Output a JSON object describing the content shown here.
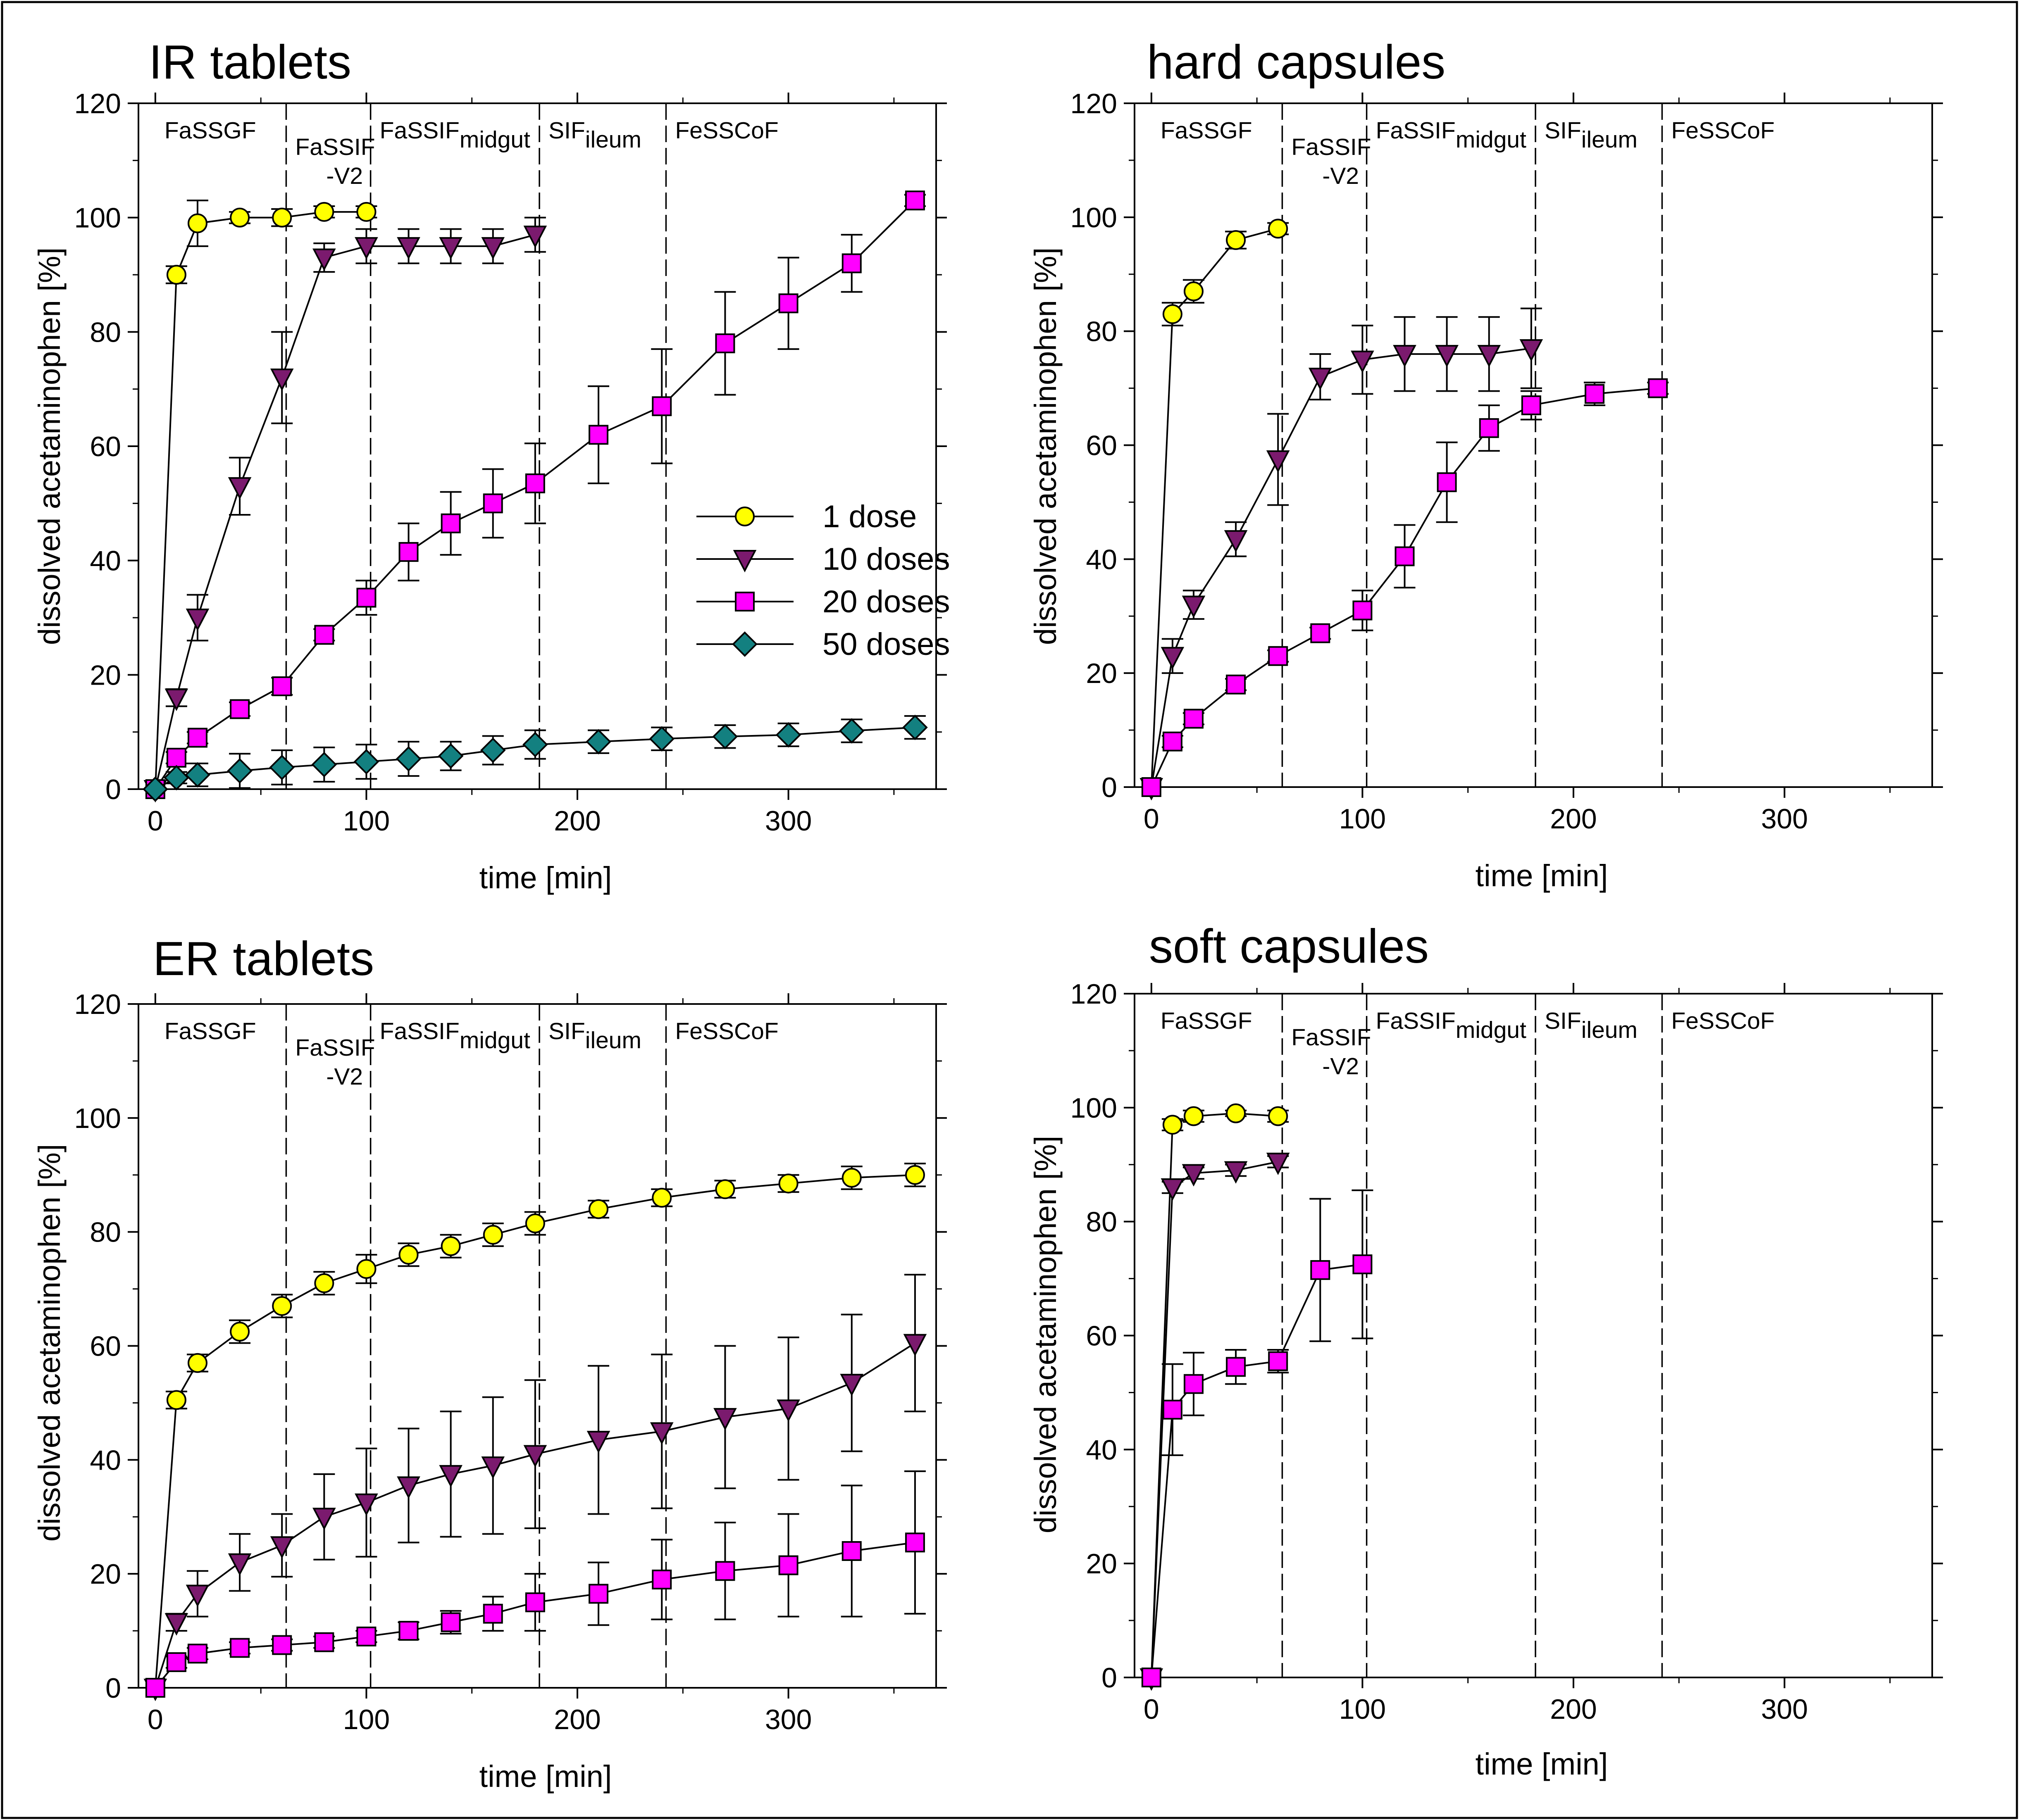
{
  "colors": {
    "1 dose": "#ffff00",
    "10 doses": "#7b1a6e",
    "20 doses": "#ff00ff",
    "50 doses": "#138080",
    "line": "#000000"
  },
  "legend": [
    {
      "label": "1 dose",
      "marker": "circle",
      "color": "#ffff00"
    },
    {
      "label": "10 doses",
      "marker": "triangle-down",
      "color": "#7b1a6e"
    },
    {
      "label": "20 doses",
      "marker": "square",
      "color": "#ff00ff"
    },
    {
      "label": "50 doses",
      "marker": "diamond",
      "color": "#138080"
    }
  ],
  "chart_data": [
    {
      "type": "line",
      "title": "IR tablets",
      "xlabel": "time [min]",
      "ylabel": "dissolved acetaminophen [%]",
      "xlim": [
        -8,
        370
      ],
      "ylim": [
        0,
        120
      ],
      "xticks": [
        0,
        100,
        200,
        300
      ],
      "yticks": [
        0,
        20,
        40,
        60,
        80,
        100,
        120
      ],
      "phase_boundaries": [
        62,
        102,
        182,
        242
      ],
      "phases": [
        {
          "label": "FaSSGF",
          "sub": ""
        },
        {
          "label": "FaSSIF",
          "sub": "",
          "line2": "-V2"
        },
        {
          "label": "FaSSIF",
          "sub": "midgut"
        },
        {
          "label": "SIF",
          "sub": "ileum"
        },
        {
          "label": "FeSSCoF",
          "sub": ""
        }
      ],
      "show_legend": true,
      "series": [
        {
          "name": "1 dose",
          "marker": "circle",
          "color": "#ffff00",
          "points": [
            [
              0,
              0,
              0
            ],
            [
              10,
              90,
              1.5
            ],
            [
              20,
              99,
              4
            ],
            [
              40,
              100,
              1
            ],
            [
              60,
              100,
              1.5
            ],
            [
              80,
              101,
              1
            ],
            [
              100,
              101,
              1
            ]
          ]
        },
        {
          "name": "10 doses",
          "marker": "triangle-down",
          "color": "#7b1a6e",
          "points": [
            [
              0,
              0,
              0
            ],
            [
              10,
              16,
              1.5
            ],
            [
              20,
              30,
              4
            ],
            [
              40,
              53,
              5
            ],
            [
              60,
              72,
              8
            ],
            [
              80,
              93,
              2.5
            ],
            [
              100,
              95,
              3
            ],
            [
              120,
              95,
              3
            ],
            [
              140,
              95,
              3
            ],
            [
              160,
              95,
              3
            ],
            [
              180,
              97,
              3
            ]
          ]
        },
        {
          "name": "20 doses",
          "marker": "square",
          "color": "#ff00ff",
          "points": [
            [
              0,
              0,
              0
            ],
            [
              10,
              5.5,
              1
            ],
            [
              20,
              9,
              1
            ],
            [
              40,
              14,
              1.2
            ],
            [
              60,
              18,
              1.5
            ],
            [
              80,
              27,
              1
            ],
            [
              100,
              33.5,
              3
            ],
            [
              120,
              41.5,
              5
            ],
            [
              140,
              46.5,
              5.5
            ],
            [
              160,
              50,
              6
            ],
            [
              180,
              53.5,
              7
            ],
            [
              210,
              62,
              8.5
            ],
            [
              240,
              67,
              10
            ],
            [
              270,
              78,
              9
            ],
            [
              300,
              85,
              8
            ],
            [
              330,
              92,
              5
            ],
            [
              360,
              103,
              1
            ]
          ]
        },
        {
          "name": "50 doses",
          "marker": "diamond",
          "color": "#138080",
          "points": [
            [
              0,
              0,
              0
            ],
            [
              10,
              2,
              1
            ],
            [
              20,
              2.5,
              2
            ],
            [
              40,
              3.2,
              3
            ],
            [
              60,
              3.8,
              3
            ],
            [
              80,
              4.3,
              3
            ],
            [
              100,
              4.8,
              3
            ],
            [
              120,
              5.3,
              3
            ],
            [
              140,
              5.8,
              2.5
            ],
            [
              160,
              6.8,
              2.5
            ],
            [
              180,
              7.8,
              2.5
            ],
            [
              210,
              8.3,
              2
            ],
            [
              240,
              8.8,
              2
            ],
            [
              270,
              9.2,
              2
            ],
            [
              300,
              9.5,
              2
            ],
            [
              330,
              10.2,
              2
            ],
            [
              360,
              10.8,
              2
            ]
          ]
        }
      ]
    },
    {
      "type": "line",
      "title": "hard capsules",
      "xlabel": "time [min]",
      "ylabel": "dissolved acetaminophen [%]",
      "xlim": [
        -8,
        370
      ],
      "ylim": [
        0,
        120
      ],
      "xticks": [
        0,
        100,
        200,
        300
      ],
      "yticks": [
        0,
        20,
        40,
        60,
        80,
        100,
        120
      ],
      "phase_boundaries": [
        62,
        102,
        182,
        242
      ],
      "phases": [
        {
          "label": "FaSSGF",
          "sub": ""
        },
        {
          "label": "FaSSIF",
          "sub": "",
          "line2": "-V2"
        },
        {
          "label": "FaSSIF",
          "sub": "midgut"
        },
        {
          "label": "SIF",
          "sub": "ileum"
        },
        {
          "label": "FeSSCoF",
          "sub": ""
        }
      ],
      "show_legend": false,
      "series": [
        {
          "name": "1 dose",
          "marker": "circle",
          "color": "#ffff00",
          "points": [
            [
              0,
              0,
              0
            ],
            [
              10,
              83,
              2
            ],
            [
              20,
              87,
              2
            ],
            [
              40,
              96,
              1.5
            ],
            [
              60,
              98,
              1
            ]
          ]
        },
        {
          "name": "10 doses",
          "marker": "triangle-down",
          "color": "#7b1a6e",
          "points": [
            [
              0,
              0,
              0
            ],
            [
              10,
              23,
              3
            ],
            [
              20,
              32,
              2.5
            ],
            [
              40,
              43.5,
              3
            ],
            [
              60,
              57.5,
              8
            ],
            [
              80,
              72,
              4
            ],
            [
              100,
              75,
              6
            ],
            [
              120,
              76,
              6.5
            ],
            [
              140,
              76,
              6.5
            ],
            [
              160,
              76,
              6.5
            ],
            [
              180,
              77,
              7
            ]
          ]
        },
        {
          "name": "20 doses",
          "marker": "square",
          "color": "#ff00ff",
          "points": [
            [
              0,
              0,
              0
            ],
            [
              10,
              8,
              1
            ],
            [
              20,
              12,
              1
            ],
            [
              40,
              18,
              1
            ],
            [
              60,
              23,
              1
            ],
            [
              80,
              27,
              1
            ],
            [
              100,
              31,
              3.5
            ],
            [
              120,
              40.5,
              5.5
            ],
            [
              140,
              53.5,
              7
            ],
            [
              160,
              63,
              4
            ],
            [
              180,
              67,
              2.5
            ],
            [
              210,
              69,
              2
            ],
            [
              240,
              70,
              1
            ]
          ]
        }
      ]
    },
    {
      "type": "line",
      "title": "ER tablets",
      "xlabel": "time [min]",
      "ylabel": "dissolved acetaminophen [%]",
      "xlim": [
        -8,
        370
      ],
      "ylim": [
        0,
        120
      ],
      "xticks": [
        0,
        100,
        200,
        300
      ],
      "yticks": [
        0,
        20,
        40,
        60,
        80,
        100,
        120
      ],
      "phase_boundaries": [
        62,
        102,
        182,
        242
      ],
      "phases": [
        {
          "label": "FaSSGF",
          "sub": ""
        },
        {
          "label": "FaSSIF",
          "sub": "",
          "line2": "-V2"
        },
        {
          "label": "FaSSIF",
          "sub": "midgut"
        },
        {
          "label": "SIF",
          "sub": "ileum"
        },
        {
          "label": "FeSSCoF",
          "sub": ""
        }
      ],
      "show_legend": false,
      "series": [
        {
          "name": "1 dose",
          "marker": "circle",
          "color": "#ffff00",
          "points": [
            [
              0,
              0,
              0
            ],
            [
              10,
              50.5,
              1.5
            ],
            [
              20,
              57,
              1.5
            ],
            [
              40,
              62.5,
              2
            ],
            [
              60,
              67,
              2
            ],
            [
              80,
              71,
              2
            ],
            [
              100,
              73.5,
              2.5
            ],
            [
              120,
              76,
              2
            ],
            [
              140,
              77.5,
              2
            ],
            [
              160,
              79.5,
              2
            ],
            [
              180,
              81.5,
              2
            ],
            [
              210,
              84,
              1.5
            ],
            [
              240,
              86,
              1.5
            ],
            [
              270,
              87.5,
              1.5
            ],
            [
              300,
              88.5,
              1.5
            ],
            [
              330,
              89.5,
              2
            ],
            [
              360,
              90,
              2
            ]
          ]
        },
        {
          "name": "10 doses",
          "marker": "triangle-down",
          "color": "#7b1a6e",
          "points": [
            [
              0,
              0,
              0
            ],
            [
              10,
              11.5,
              1.5
            ],
            [
              20,
              16.5,
              4
            ],
            [
              40,
              22,
              5
            ],
            [
              60,
              25,
              5.5
            ],
            [
              80,
              30,
              7.5
            ],
            [
              100,
              32.5,
              9.5
            ],
            [
              120,
              35.5,
              10
            ],
            [
              140,
              37.5,
              11
            ],
            [
              160,
              39,
              12
            ],
            [
              180,
              41,
              13
            ],
            [
              210,
              43.5,
              13
            ],
            [
              240,
              45,
              13.5
            ],
            [
              270,
              47.5,
              12.5
            ],
            [
              300,
              49,
              12.5
            ],
            [
              330,
              53.5,
              12
            ],
            [
              360,
              60.5,
              12
            ]
          ]
        },
        {
          "name": "20 doses",
          "marker": "square",
          "color": "#ff00ff",
          "points": [
            [
              0,
              0,
              0
            ],
            [
              10,
              4.5,
              1
            ],
            [
              20,
              6,
              1
            ],
            [
              40,
              7,
              1
            ],
            [
              60,
              7.5,
              1
            ],
            [
              80,
              8,
              1
            ],
            [
              100,
              9,
              1
            ],
            [
              120,
              10,
              1.5
            ],
            [
              140,
              11.5,
              2
            ],
            [
              160,
              13,
              3
            ],
            [
              180,
              15,
              5
            ],
            [
              210,
              16.5,
              5.5
            ],
            [
              240,
              19,
              7
            ],
            [
              270,
              20.5,
              8.5
            ],
            [
              300,
              21.5,
              9
            ],
            [
              330,
              24,
              11.5
            ],
            [
              360,
              25.5,
              12.5
            ]
          ]
        }
      ]
    },
    {
      "type": "line",
      "title": "soft capsules",
      "xlabel": "time [min]",
      "ylabel": "dissolved acetaminophen [%]",
      "xlim": [
        -8,
        370
      ],
      "ylim": [
        0,
        120
      ],
      "xticks": [
        0,
        100,
        200,
        300
      ],
      "yticks": [
        0,
        20,
        40,
        60,
        80,
        100,
        120
      ],
      "phase_boundaries": [
        62,
        102,
        182,
        242
      ],
      "phases": [
        {
          "label": "FaSSGF",
          "sub": ""
        },
        {
          "label": "FaSSIF",
          "sub": "",
          "line2": "-V2"
        },
        {
          "label": "FaSSIF",
          "sub": "midgut"
        },
        {
          "label": "SIF",
          "sub": "ileum"
        },
        {
          "label": "FeSSCoF",
          "sub": ""
        }
      ],
      "show_legend": false,
      "series": [
        {
          "name": "1 dose",
          "marker": "circle",
          "color": "#ffff00",
          "points": [
            [
              0,
              0,
              0
            ],
            [
              10,
              97,
              1
            ],
            [
              20,
              98.5,
              1
            ],
            [
              40,
              99,
              0.5
            ],
            [
              60,
              98.5,
              1
            ]
          ]
        },
        {
          "name": "10 doses",
          "marker": "triangle-down",
          "color": "#7b1a6e",
          "points": [
            [
              0,
              0,
              0
            ],
            [
              10,
              86,
              1
            ],
            [
              20,
              88.5,
              1
            ],
            [
              40,
              89,
              1
            ],
            [
              60,
              90.5,
              1
            ]
          ]
        },
        {
          "name": "20 doses",
          "marker": "square",
          "color": "#ff00ff",
          "points": [
            [
              0,
              0,
              0
            ],
            [
              10,
              47,
              8
            ],
            [
              20,
              51.5,
              5.5
            ],
            [
              40,
              54.5,
              3
            ],
            [
              60,
              55.5,
              2
            ],
            [
              80,
              71.5,
              12.5
            ],
            [
              100,
              72.5,
              13
            ]
          ]
        }
      ]
    }
  ]
}
